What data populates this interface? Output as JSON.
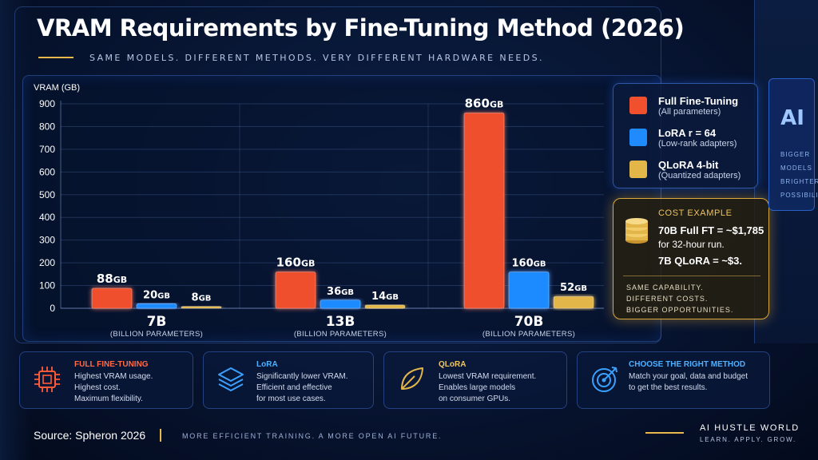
{
  "title": "VRAM Requirements by Fine-Tuning Method (2026)",
  "subtitle": "SAME MODELS. DIFFERENT METHODS. VERY DIFFERENT HARDWARE NEEDS.",
  "colors": {
    "full": "#f0502e",
    "lora": "#1f8bff",
    "qlora": "#e3b64a",
    "background": "#071431"
  },
  "chart_data": {
    "type": "bar",
    "ylabel": "VRAM (GB)",
    "ylim": [
      0,
      900
    ],
    "yticks": [
      "0",
      "100",
      "200",
      "300",
      "400",
      "500",
      "600",
      "700",
      "800",
      "900"
    ],
    "categories": [
      {
        "label": "7B",
        "sublabel": "(BILLION PARAMETERS)"
      },
      {
        "label": "13B",
        "sublabel": "(BILLION PARAMETERS)"
      },
      {
        "label": "70B",
        "sublabel": "(BILLION PARAMETERS)"
      }
    ],
    "series": [
      {
        "name": "Full Fine-Tuning",
        "values": [
          88,
          160,
          860
        ],
        "labels": [
          "88",
          "160",
          "860"
        ]
      },
      {
        "name": "LoRA r = 64",
        "values": [
          20,
          36,
          160
        ],
        "labels": [
          "20",
          "36",
          "160"
        ]
      },
      {
        "name": "QLoRA 4-bit",
        "values": [
          8,
          14,
          52
        ],
        "labels": [
          "8",
          "14",
          "52"
        ]
      }
    ],
    "unit": "GB",
    "grid": true,
    "legend_position": "right"
  },
  "legend": [
    {
      "name": "Full Fine-Tuning",
      "desc": "(All parameters)"
    },
    {
      "name": "LoRA r = 64",
      "desc": "(Low-rank adapters)"
    },
    {
      "name": "QLoRA 4-bit",
      "desc": "(Quantized adapters)"
    }
  ],
  "cost": {
    "title": "COST EXAMPLE",
    "line1": "70B Full FT = ~$1,785",
    "line2": "for 32-hour run.",
    "line3": "7B QLoRA = ~$3.",
    "foot": [
      "SAME CAPABILITY.",
      "DIFFERENT COSTS.",
      "BIGGER OPPORTUNITIES."
    ]
  },
  "ai_panel": {
    "big": "AI",
    "lines": [
      "BIGGER",
      "MODELS",
      "BRIGHTER",
      "POSSIBILITIES"
    ]
  },
  "cards": [
    {
      "title": "FULL FINE-TUNING",
      "lines": [
        "Highest VRAM usage.",
        "Highest cost.",
        "Maximum flexibility."
      ],
      "icon": "chip-icon"
    },
    {
      "title": "LoRA",
      "lines": [
        "Significantly lower VRAM.",
        "Efficient and effective",
        "for most use cases."
      ],
      "icon": "layers-icon"
    },
    {
      "title": "QLoRA",
      "lines": [
        "Lowest VRAM requirement.",
        "Enables large models",
        "on consumer GPUs."
      ],
      "icon": "leaf-icon"
    },
    {
      "title": "CHOOSE THE RIGHT METHOD",
      "lines": [
        "Match your goal, data and budget",
        "to get the best results."
      ],
      "icon": "target-icon"
    }
  ],
  "footer": {
    "source": "Source: Spheron 2026",
    "tagline": "MORE EFFICIENT TRAINING. A MORE OPEN AI FUTURE.",
    "brand": "AI HUSTLE WORLD",
    "brand_sub": "LEARN. APPLY. GROW."
  }
}
